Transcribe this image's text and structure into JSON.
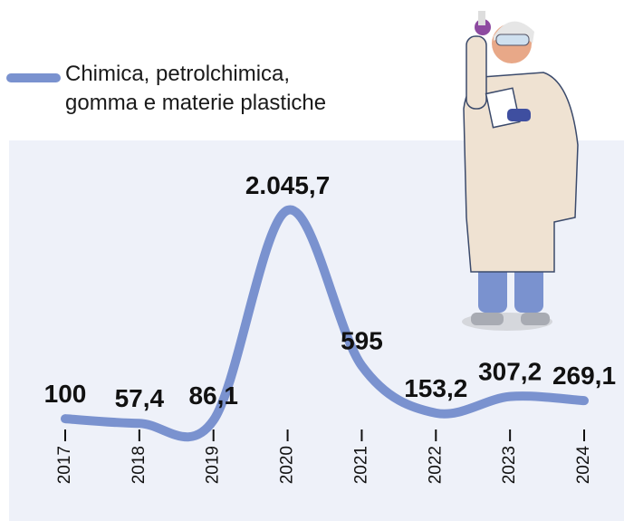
{
  "chart_data": {
    "type": "line",
    "categories": [
      "2017",
      "2018",
      "2019",
      "2020",
      "2021",
      "2022",
      "2023",
      "2024"
    ],
    "series": [
      {
        "name": "Chimica, petrolchimica, gomma e materie plastiche",
        "color": "#7a92cf",
        "values": [
          100,
          57.4,
          86.1,
          2045.7,
          595,
          153.2,
          307.2,
          269.1
        ],
        "value_labels": [
          "100",
          "57,4",
          "86,1",
          "2.045,7",
          "595",
          "153,2",
          "307,2",
          "269,1"
        ]
      }
    ],
    "legend": "top-left"
  }
}
